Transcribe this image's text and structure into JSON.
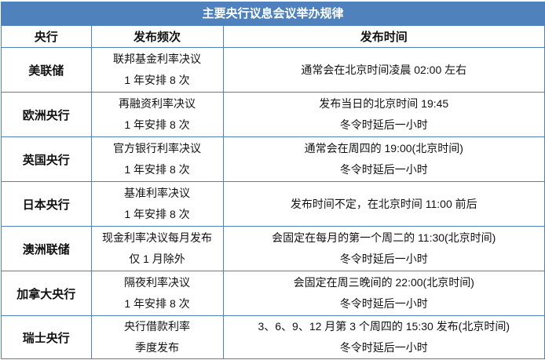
{
  "title": "主要央行议息会议举办规律",
  "headers": [
    "央行",
    "发布频次",
    "发布时间"
  ],
  "rows": [
    {
      "bank": "美联储",
      "freq": [
        "联邦基金利率决议",
        "1 年安排 8 次"
      ],
      "time": [
        "通常会在北京时间凌晨 02:00 左右"
      ]
    },
    {
      "bank": "欧洲央行",
      "freq": [
        "再融资利率决议",
        "1 年安排 8 次"
      ],
      "time": [
        "发布当日的北京时间 19:45",
        "冬令时延后一小时"
      ]
    },
    {
      "bank": "英国央行",
      "freq": [
        "官方银行利率决议",
        "1 年安排 8 次"
      ],
      "time": [
        "通常会在周四的 19:00(北京时间)",
        "冬令时延后一小时"
      ]
    },
    {
      "bank": "日本央行",
      "freq": [
        "基准利率决议",
        "1 年安排 8 次"
      ],
      "time": [
        "发布时间不定，在北京时间 11:00 前后"
      ]
    },
    {
      "bank": "澳洲联储",
      "freq": [
        "现金利率决议每月发布",
        "仅 1 月除外"
      ],
      "time": [
        "会固定在每月的第一个周二的 11:30(北京时间)",
        "冬令时延后一小时"
      ]
    },
    {
      "bank": "加拿大央行",
      "freq": [
        "隔夜利率决议",
        "1 年安排 8 次"
      ],
      "time": [
        "会固定在周三晚间的 22:00(北京时间)",
        "冬令时延后一小时"
      ]
    },
    {
      "bank": "瑞士央行",
      "freq": [
        "央行借款利率",
        "季度发布"
      ],
      "time": [
        "3、6、9、12 月第 3 个周四的 15:30 发布(北京时间)",
        "冬令时延后一小时"
      ]
    }
  ]
}
